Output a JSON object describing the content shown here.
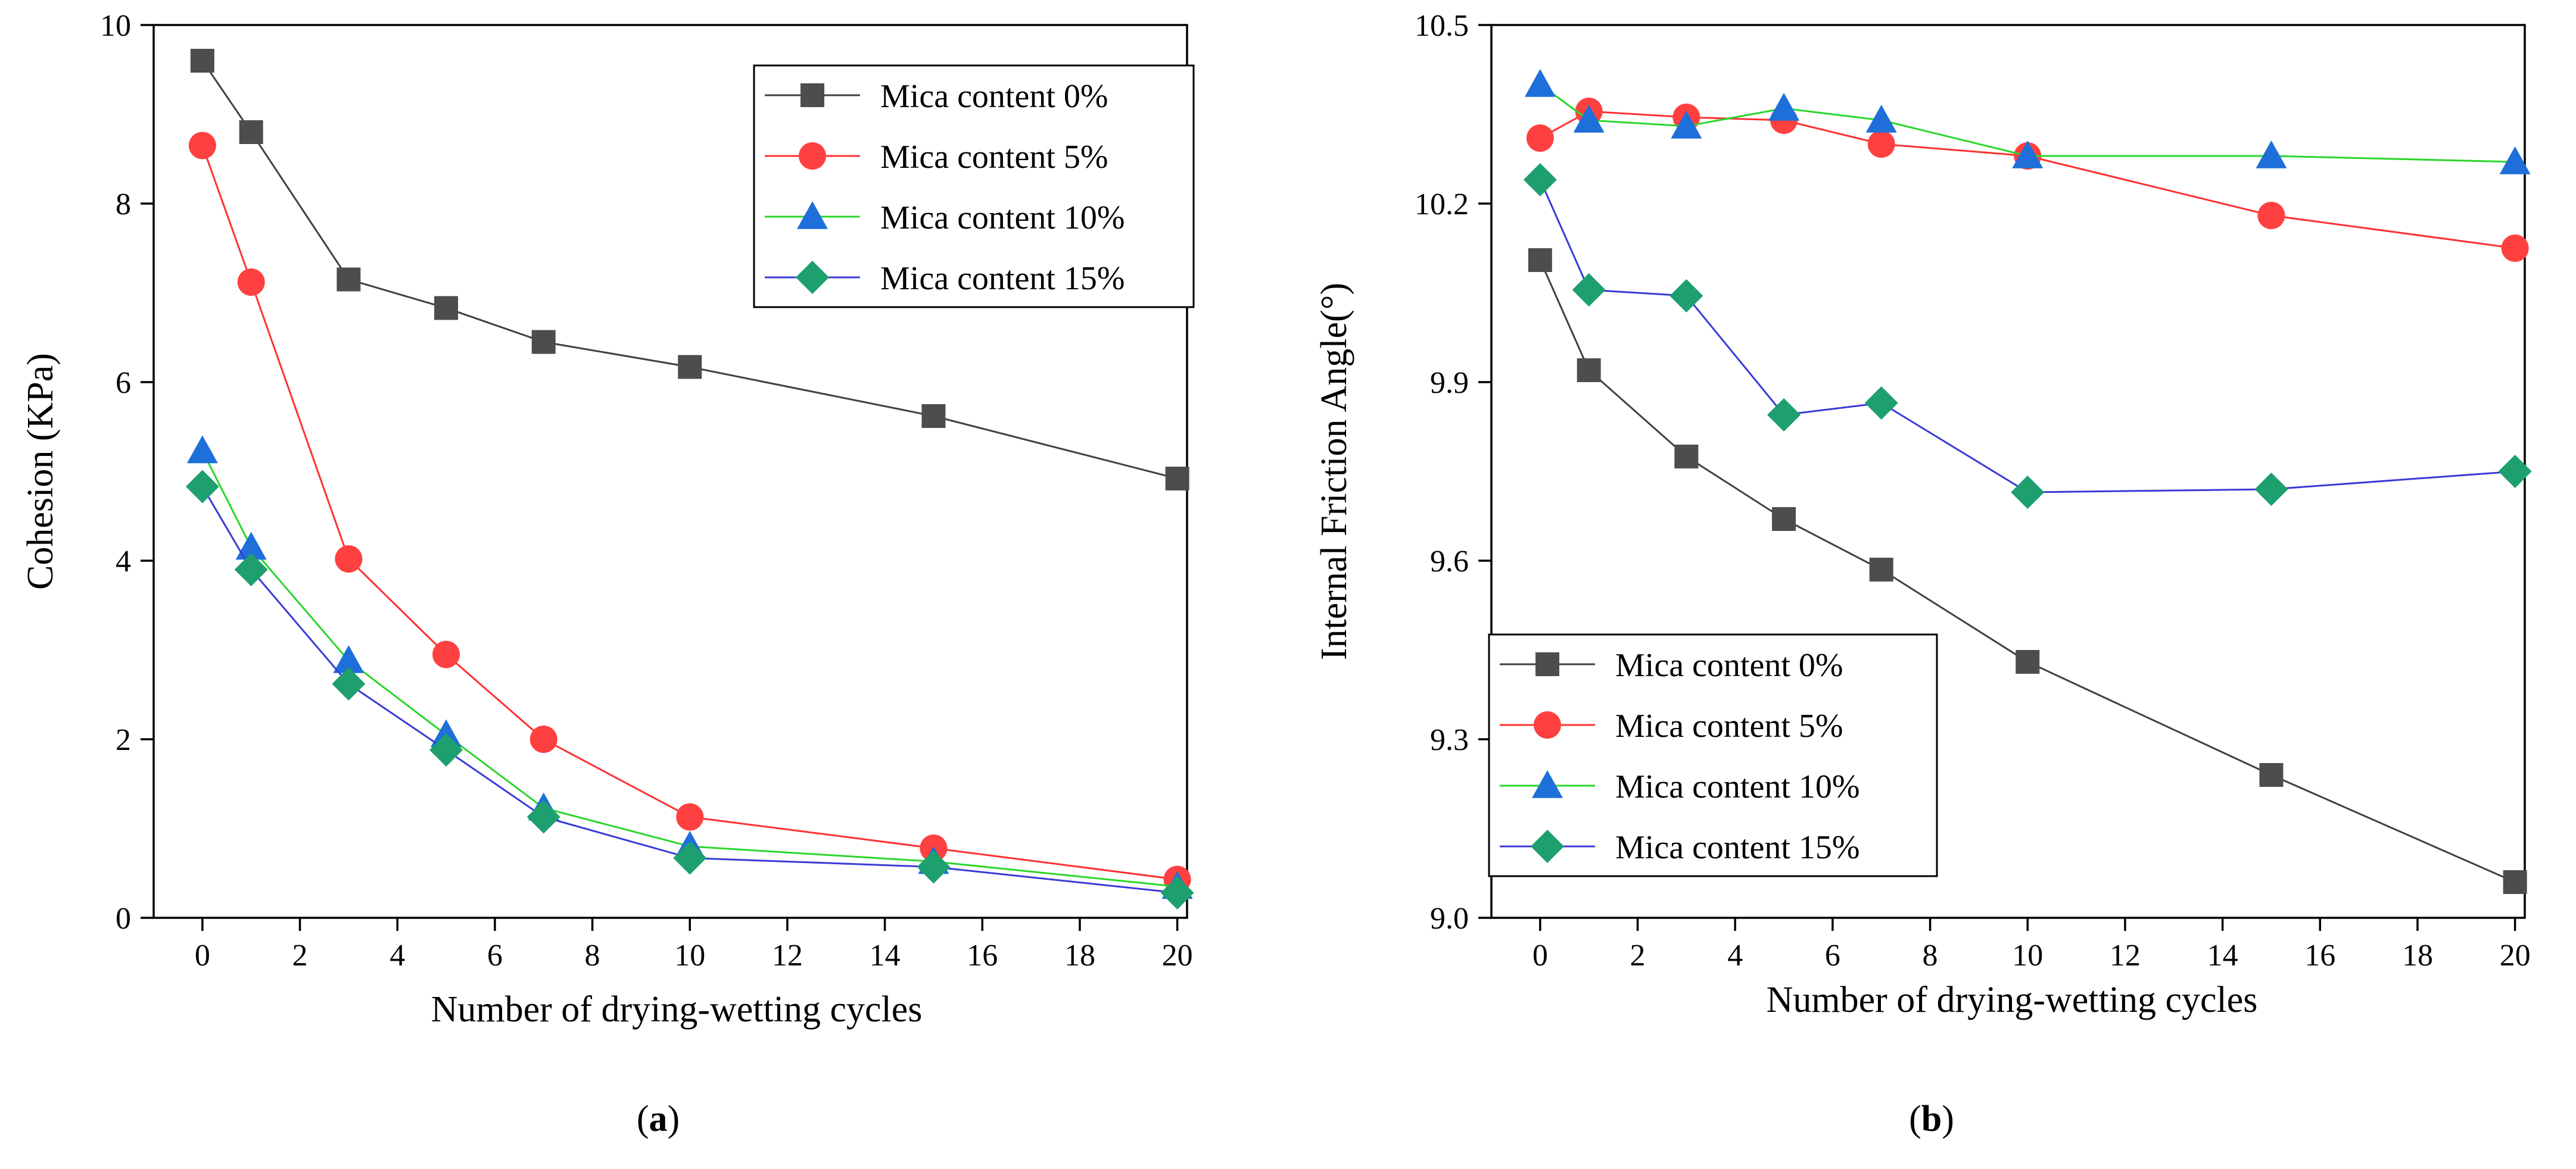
{
  "colors": {
    "mica_0": "#4d4d4d",
    "mica_5": "#ff4040",
    "mica_10": "#1e6fd9",
    "mica_15": "#1ea06e",
    "line_0": "#404040",
    "line_5": "#ff3030",
    "line_10": "#2ad62a",
    "line_15": "#3a3ad8"
  },
  "chart_data": [
    {
      "type": "line",
      "panel": "a",
      "panel_label_open": "(",
      "panel_label_letter": "a",
      "panel_label_close": ")",
      "xlabel": "Number of drying-wetting cycles",
      "ylabel": "Cohesion (KPa)",
      "xlim": [
        -1,
        20.2
      ],
      "ylim": [
        0,
        10
      ],
      "x_ticks": [
        0,
        2,
        4,
        6,
        8,
        10,
        12,
        14,
        16,
        18,
        20
      ],
      "y_ticks": [
        0,
        2,
        4,
        6,
        8,
        10
      ],
      "y_tick_labels": [
        "0",
        "2",
        "4",
        "6",
        "8",
        "10"
      ],
      "legend_position": "top-right",
      "x": [
        0,
        1,
        3,
        5,
        7,
        10,
        15,
        20
      ],
      "series": [
        {
          "name": "Mica content 0%",
          "marker": "square",
          "values": [
            9.6,
            8.8,
            7.15,
            6.83,
            6.45,
            6.17,
            5.62,
            4.92
          ]
        },
        {
          "name": "Mica content 5%",
          "marker": "circle",
          "values": [
            8.65,
            7.12,
            4.02,
            2.95,
            2.0,
            1.13,
            0.78,
            0.43
          ]
        },
        {
          "name": "Mica content 10%",
          "marker": "triangle",
          "values": [
            5.23,
            4.15,
            2.88,
            2.05,
            1.23,
            0.8,
            0.63,
            0.35
          ]
        },
        {
          "name": "Mica content 15%",
          "marker": "diamond",
          "values": [
            4.83,
            3.9,
            2.62,
            1.88,
            1.13,
            0.67,
            0.57,
            0.28
          ]
        }
      ]
    },
    {
      "type": "line",
      "panel": "b",
      "panel_label_open": "(",
      "panel_label_letter": "b",
      "panel_label_close": ")",
      "xlabel": "Number of drying-wetting cycles",
      "ylabel": "Internal Friction Angle(°)",
      "xlim": [
        -1,
        20.2
      ],
      "ylim": [
        9.0,
        10.5
      ],
      "x_ticks": [
        0,
        2,
        4,
        6,
        8,
        10,
        12,
        14,
        16,
        18,
        20
      ],
      "y_ticks": [
        9.0,
        9.3,
        9.6,
        9.9,
        10.2,
        10.5
      ],
      "y_tick_labels": [
        "9.0",
        "9.3",
        "9.6",
        "9.9",
        "10.2",
        "10.5"
      ],
      "legend_position": "bottom-left",
      "x": [
        0,
        1,
        3,
        5,
        7,
        10,
        15,
        20
      ],
      "series": [
        {
          "name": "Mica content 0%",
          "marker": "square",
          "values": [
            10.105,
            9.92,
            9.775,
            9.67,
            9.585,
            9.43,
            9.24,
            9.06
          ]
        },
        {
          "name": "Mica content 5%",
          "marker": "circle",
          "values": [
            10.31,
            10.355,
            10.345,
            10.34,
            10.3,
            10.28,
            10.18,
            10.125
          ]
        },
        {
          "name": "Mica content 10%",
          "marker": "triangle",
          "values": [
            10.4,
            10.34,
            10.33,
            10.36,
            10.34,
            10.28,
            10.28,
            10.27
          ]
        },
        {
          "name": "Mica content 15%",
          "marker": "diamond",
          "values": [
            10.24,
            10.055,
            10.045,
            9.845,
            9.865,
            9.715,
            9.72,
            9.75
          ]
        }
      ]
    }
  ]
}
